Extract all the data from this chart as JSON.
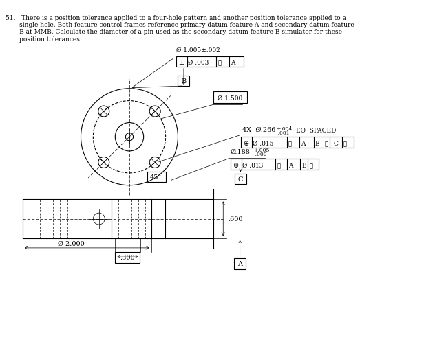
{
  "bg_color": "#ffffff",
  "text_color": "#000000",
  "line_color": "#000000",
  "title_text": "51.  There is a position tolerance applied to a four-hole pattern and another position tolerance applied to a\n      single hole. Both feature control frames reference primary datum feature A and secondary datum feature\n      B at MMB. Calculate the diameter of a pin used as the secondary datum feature B simulator for these\n      position tolerances.",
  "label_top": "Ø 1.005±.002",
  "fcf_top_line1": "⊥",
  "fcf_top_line2": "Ø .003",
  "fcf_top_m": "Ⓜ",
  "fcf_top_a": "A",
  "datum_b_label": "B",
  "dia_1500_label": "Ø 1.500",
  "four_hole_label": "4X Ø.266",
  "four_hole_tol_top": "+.004",
  "four_hole_tol_bot": "-.001",
  "four_hole_eq": "EQ  SPACED",
  "fcf_4hole_line": "⊕|Ø.015Ⓜ|A|BⓂ|CⓂ",
  "single_hole_dim": "Ø.188",
  "single_hole_tol_top": "+.005",
  "single_hole_tol_bot": "-.000",
  "fcf_single_line": "⊕|Ø.013Ⓜ|A|BⓂ",
  "datum_c_label": "C",
  "angle_label": "45°",
  "dia_2000_label": "Ø 2.000",
  "dim_300": ".300",
  "dim_600": ".600",
  "datum_a_label": "A"
}
